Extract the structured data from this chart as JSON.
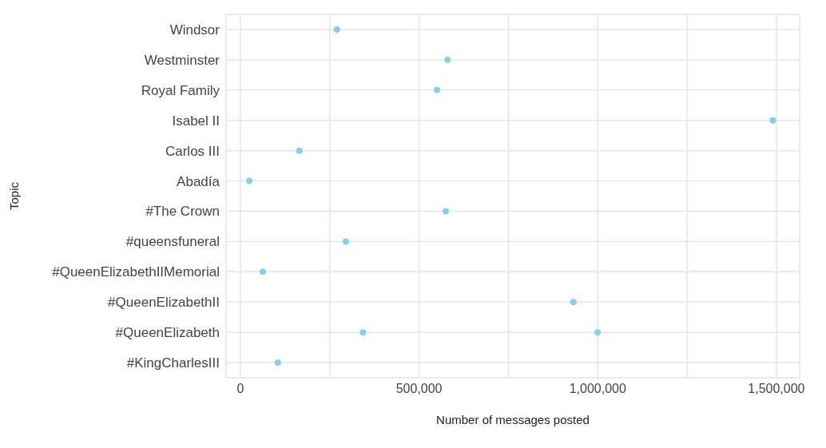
{
  "chart_data": {
    "type": "scatter",
    "orientation": "horizontal",
    "xlabel": "Number of messages posted",
    "ylabel": "Topic",
    "categories": [
      "Windsor",
      "Westminster",
      "Royal Family",
      "Isabel II",
      "Carlos III",
      "Abadía",
      "#The Crown",
      "#queensfuneral",
      "#QueenElizabethIIMemorial",
      "#QueenElizabethII",
      "#QueenElizabeth",
      "#KingCharlesIII"
    ],
    "series": [
      {
        "color": "#87ceeb",
        "values": [
          270000,
          580000,
          550000,
          1490000,
          165000,
          25000,
          575000,
          295000,
          63000,
          932000,
          343000,
          105000
        ]
      },
      {
        "color": "#87ceeb",
        "values": [
          null,
          null,
          null,
          null,
          null,
          null,
          null,
          null,
          null,
          null,
          1000000,
          null
        ]
      }
    ],
    "xlim": [
      -40000,
      1565000
    ],
    "xticks": [
      0,
      {
        "value": 250000,
        "label": null
      },
      "500,000",
      {
        "value": 750000,
        "label": null
      },
      {
        "value": 1000000,
        "label": "1,000,000"
      },
      {
        "value": 1250000,
        "label": null
      },
      {
        "value": 1500000,
        "label": "1,500,000"
      }
    ],
    "grid": true,
    "marker": "circle"
  }
}
